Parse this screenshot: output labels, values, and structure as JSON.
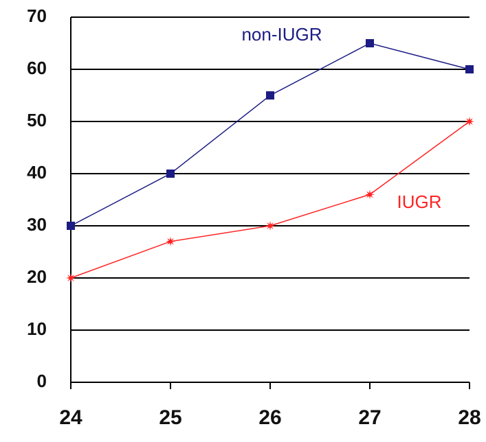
{
  "chart_data": {
    "type": "line",
    "x": [
      24,
      25,
      26,
      27,
      28
    ],
    "series": [
      {
        "name": "non-IUGR",
        "color": "#1c1c84",
        "marker": "square",
        "values": [
          30,
          40,
          55,
          65,
          60
        ]
      },
      {
        "name": "IUGR",
        "color": "#ff2222",
        "marker": "star",
        "values": [
          20,
          27,
          30,
          36,
          50
        ]
      }
    ],
    "xlim": [
      24,
      28
    ],
    "xticks": [
      24,
      25,
      26,
      27,
      28
    ],
    "ylim": [
      0,
      70
    ],
    "yticks": [
      0,
      10,
      20,
      30,
      40,
      50,
      60,
      70
    ],
    "grid": true
  }
}
